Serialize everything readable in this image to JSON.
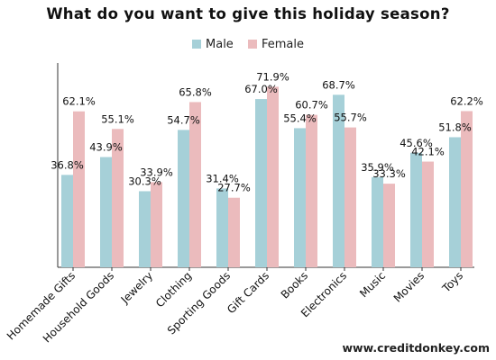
{
  "title": "What do you want to give this holiday season?",
  "source": "www.creditdonkey.com",
  "colors": {
    "male": "#a6d0d8",
    "female": "#ebbbbd",
    "axis": "#333333",
    "text": "#111111"
  },
  "chart_data": {
    "type": "bar",
    "title": "What do you want to give this holiday season?",
    "categories": [
      "Homemade Gifts",
      "Household Goods",
      "Jewelry",
      "Clothing",
      "Sporting Goods",
      "Gift Cards",
      "Books",
      "Electronics",
      "Music",
      "Movies",
      "Toys"
    ],
    "series": [
      {
        "name": "Male",
        "values": [
          36.8,
          43.9,
          30.3,
          54.7,
          31.4,
          67.0,
          55.4,
          68.7,
          35.9,
          45.6,
          51.8
        ],
        "labels": [
          "36.8%",
          "43.9%",
          "30.3%",
          "54.7%",
          "31.4%",
          "67.0%",
          "55.4%",
          "68.7%",
          "35.9%",
          "45.6%",
          "51.8%"
        ]
      },
      {
        "name": "Female",
        "values": [
          62.1,
          55.1,
          33.9,
          65.8,
          27.7,
          71.9,
          60.7,
          55.7,
          33.3,
          42.1,
          62.2
        ],
        "labels": [
          "62.1%",
          "55.1%",
          "33.9%",
          "65.8%",
          "27.7%",
          "71.9%",
          "60.7%",
          "55.7%",
          "33.3%",
          "42.1%",
          "62.2%"
        ]
      }
    ],
    "xlabel": "",
    "ylabel": "",
    "ylim": [
      0,
      80
    ],
    "grid": false,
    "legend": "top-center"
  }
}
